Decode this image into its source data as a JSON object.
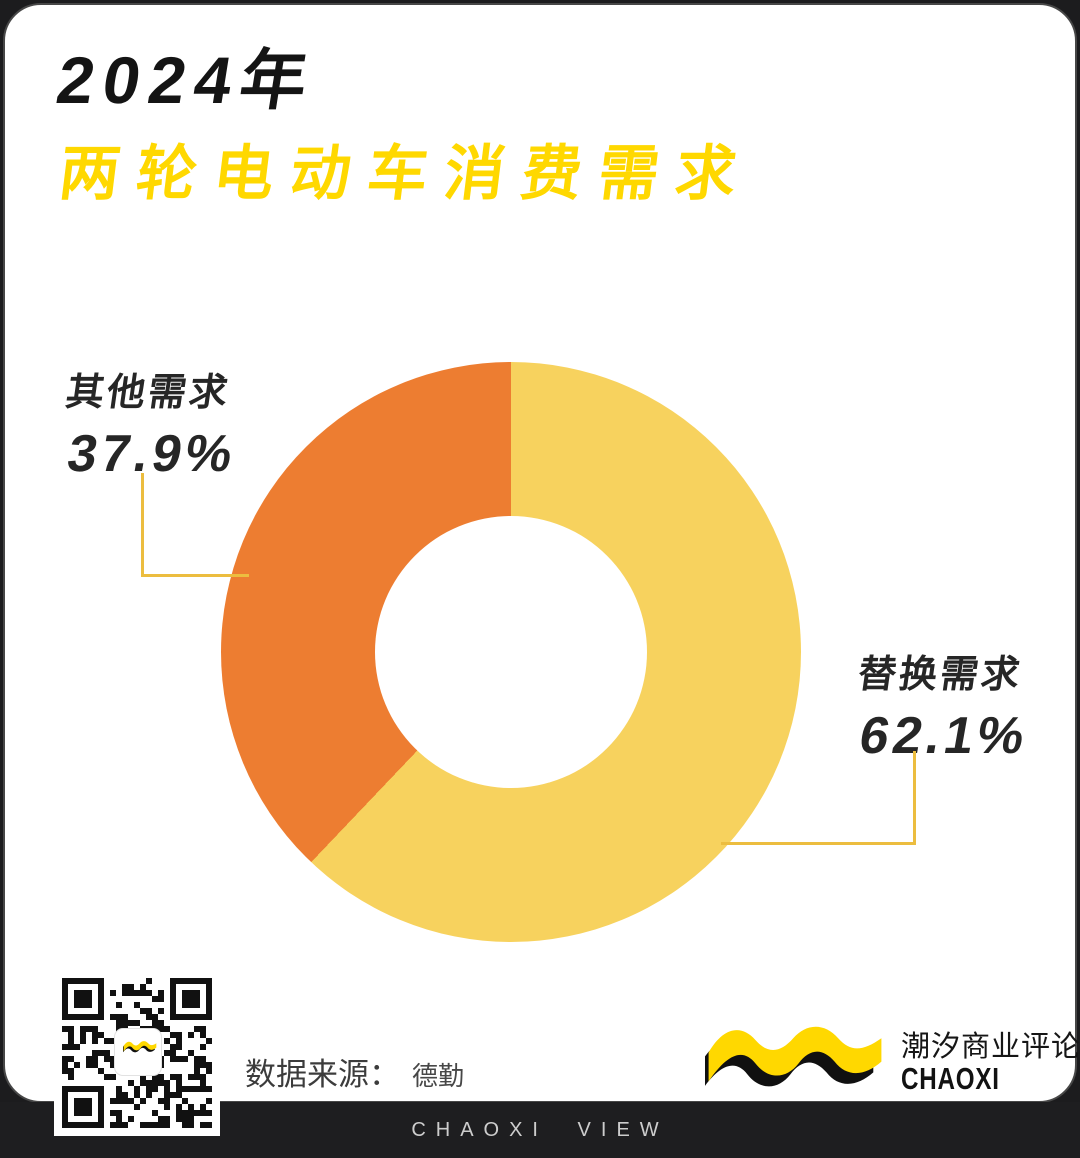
{
  "header": {
    "year_title": "2024年",
    "subtitle": "两轮电动车消费需求"
  },
  "chart_data": {
    "type": "pie",
    "title": "2024年两轮电动车消费需求",
    "donut": true,
    "start_angle_deg": 0,
    "direction": "clockwise",
    "slices": [
      {
        "label": "替换需求",
        "value_pct": 62.1,
        "pct_label": "62.1%",
        "color": "#F7D25E"
      },
      {
        "label": "其他需求",
        "value_pct": 37.9,
        "pct_label": "37.9%",
        "color": "#ED7D31"
      }
    ],
    "legend_position": "callouts"
  },
  "footer": {
    "datasource_label": "数据来源：",
    "datasource_value": "德勤",
    "brand_cn": "潮汐商业评论",
    "brand_en": "CHAOXI",
    "bottom_bar_text": "CHAOXI VIEW"
  },
  "colors": {
    "accent_yellow": "#FFD800",
    "slice_yellow": "#F7D25E",
    "slice_orange": "#ED7D31",
    "connector_gold": "#ECBD3F",
    "text_dark": "#141414",
    "bar_bg": "#1e1e20",
    "page_bg": "#1c1c1e"
  }
}
